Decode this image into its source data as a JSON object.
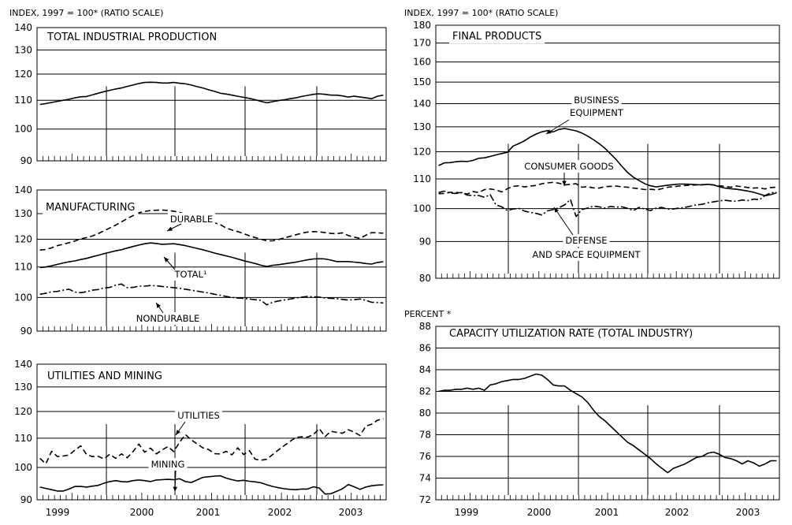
{
  "left_axis_header": "INDEX, 1997 = 100* (RATIO SCALE)",
  "right_axis_header": "INDEX, 1997 = 100* (RATIO SCALE)",
  "years": [
    "1999",
    "2000",
    "2001",
    "2002",
    "2003"
  ],
  "chart_data": [
    {
      "type": "line",
      "title": "TOTAL INDUSTRIAL PRODUCTION",
      "ylim": [
        90,
        140
      ],
      "yticks": [
        90,
        100,
        110,
        120,
        130,
        140
      ],
      "scale": "log",
      "x_start": "1999-01",
      "series": [
        {
          "style": "solid",
          "values": [
            108.5,
            108.8,
            109.2,
            109.6,
            110.0,
            110.4,
            110.9,
            111.3,
            111.4,
            112.0,
            112.6,
            113.2,
            113.7,
            114.2,
            114.6,
            115.2,
            115.7,
            116.3,
            116.7,
            116.8,
            116.7,
            116.5,
            116.5,
            116.7,
            116.4,
            116.2,
            115.7,
            115.1,
            114.6,
            113.9,
            113.3,
            112.6,
            112.3,
            111.9,
            111.5,
            111.1,
            110.7,
            110.2,
            109.6,
            109.1,
            109.5,
            109.9,
            110.2,
            110.6,
            110.9,
            111.4,
            111.8,
            112.2,
            112.4,
            112.2,
            111.9,
            111.9,
            111.6,
            111.2,
            111.5,
            111.2,
            110.9,
            110.6,
            111.5,
            111.9
          ]
        }
      ],
      "annotations": []
    },
    {
      "type": "line",
      "title": "MANUFACTURING",
      "ylim": [
        90,
        140
      ],
      "yticks": [
        90,
        100,
        110,
        120,
        130,
        140
      ],
      "scale": "log",
      "x_start": "1999-01",
      "series": [
        {
          "name": "DURABLE",
          "style": "dashed",
          "values": [
            116.0,
            116.2,
            116.8,
            117.6,
            118.1,
            118.7,
            119.3,
            120.1,
            120.6,
            121.2,
            122.1,
            123.2,
            124.3,
            125.4,
            126.7,
            128.0,
            129.2,
            130.4,
            130.9,
            131.3,
            131.4,
            131.5,
            131.3,
            131.0,
            130.5,
            129.8,
            128.6,
            127.4,
            127.2,
            127.0,
            126.3,
            125.6,
            124.3,
            123.5,
            122.9,
            122.1,
            121.3,
            120.6,
            120.0,
            119.4,
            119.4,
            119.9,
            120.5,
            121.1,
            121.7,
            122.3,
            122.7,
            122.9,
            122.8,
            122.5,
            122.2,
            122.1,
            122.4,
            121.4,
            120.8,
            120.3,
            121.5,
            122.5,
            122.4,
            122.3
          ]
        },
        {
          "name": "TOTAL¹",
          "style": "solid",
          "values": [
            109.8,
            110.0,
            110.4,
            110.9,
            111.4,
            111.8,
            112.1,
            112.6,
            113.0,
            113.6,
            114.1,
            114.7,
            115.2,
            115.7,
            116.1,
            116.7,
            117.3,
            117.8,
            118.3,
            118.6,
            118.4,
            118.1,
            118.2,
            118.3,
            118.0,
            117.6,
            117.1,
            116.6,
            116.1,
            115.5,
            114.9,
            114.4,
            113.9,
            113.4,
            112.8,
            112.2,
            111.7,
            111.2,
            110.6,
            110.2,
            110.6,
            110.8,
            111.1,
            111.4,
            111.7,
            112.1,
            112.5,
            112.8,
            112.9,
            112.8,
            112.4,
            111.9,
            111.9,
            111.9,
            111.7,
            111.5,
            111.2,
            111.0,
            111.6,
            111.8
          ]
        },
        {
          "name": "NONDURABLE",
          "style": "dashdot",
          "values": [
            101.0,
            101.3,
            101.8,
            101.9,
            102.3,
            102.6,
            101.7,
            101.5,
            101.8,
            102.3,
            102.5,
            103.0,
            103.2,
            103.9,
            104.3,
            103.1,
            103.2,
            103.6,
            103.6,
            103.8,
            103.7,
            103.5,
            103.3,
            103.1,
            102.9,
            102.6,
            102.3,
            102.0,
            101.7,
            101.4,
            101.0,
            100.7,
            100.3,
            100.0,
            99.8,
            99.7,
            99.5,
            99.3,
            99.1,
            97.7,
            98.5,
            98.9,
            99.2,
            99.5,
            99.8,
            100.1,
            100.3,
            100.2,
            100.1,
            99.8,
            99.7,
            99.6,
            99.4,
            99.2,
            99.3,
            99.5,
            99.1,
            98.5,
            98.4,
            98.3
          ]
        }
      ],
      "annotations": [
        "DURABLE",
        "TOTAL¹",
        "NONDURABLE"
      ]
    },
    {
      "type": "line",
      "title": "UTILITIES AND MINING",
      "ylim": [
        90,
        140
      ],
      "yticks": [
        90,
        100,
        110,
        120,
        130,
        140
      ],
      "scale": "log",
      "x_start": "1999-01",
      "series": [
        {
          "name": "UTILITIES",
          "style": "dashed",
          "values": [
            103.0,
            101.2,
            105.4,
            103.6,
            103.8,
            104.1,
            105.8,
            107.3,
            104.3,
            103.6,
            103.7,
            102.8,
            104.4,
            103.0,
            104.5,
            103.2,
            105.3,
            107.9,
            105.1,
            106.5,
            104.5,
            105.9,
            107.0,
            105.3,
            108.6,
            111.3,
            109.4,
            108.0,
            106.6,
            106.0,
            104.6,
            104.5,
            105.4,
            104.2,
            106.6,
            104.3,
            105.6,
            102.7,
            102.4,
            102.7,
            104.3,
            105.9,
            107.4,
            108.9,
            110.3,
            110.5,
            110.4,
            111.3,
            113.5,
            110.6,
            112.5,
            112.1,
            111.8,
            113.1,
            112.2,
            111.0,
            114.4,
            115.1,
            116.6,
            117.2
          ]
        },
        {
          "name": "MINING",
          "style": "solid",
          "values": [
            93.8,
            93.4,
            93.0,
            92.6,
            92.6,
            93.2,
            94.0,
            94.0,
            93.8,
            94.1,
            94.3,
            95.0,
            95.5,
            95.8,
            95.5,
            95.4,
            95.8,
            96.0,
            95.8,
            95.5,
            96.0,
            96.1,
            96.2,
            96.1,
            96.4,
            95.5,
            95.2,
            96.0,
            96.8,
            97.0,
            97.2,
            97.3,
            96.6,
            96.1,
            95.7,
            95.9,
            95.6,
            95.4,
            95.1,
            94.5,
            94.0,
            93.6,
            93.3,
            93.1,
            93.0,
            93.2,
            93.2,
            93.9,
            93.5,
            91.7,
            91.8,
            92.5,
            93.3,
            94.6,
            93.9,
            93.1,
            93.8,
            94.2,
            94.4,
            94.5
          ]
        }
      ],
      "annotations": [
        "UTILITIES",
        "MINING"
      ]
    },
    {
      "type": "line",
      "title": "FINAL PRODUCTS",
      "ylim": [
        80,
        180
      ],
      "yticks": [
        80,
        90,
        100,
        110,
        120,
        130,
        140,
        150,
        160,
        170,
        180
      ],
      "scale": "log",
      "x_start": "1999-01",
      "series": [
        {
          "name": "BUSINESS EQUIPMENT",
          "style": "solid",
          "values": [
            114.8,
            115.8,
            115.9,
            116.2,
            116.4,
            116.3,
            116.7,
            117.5,
            117.7,
            118.2,
            118.8,
            119.3,
            119.8,
            122.2,
            123.2,
            124.3,
            125.8,
            127.0,
            127.9,
            128.4,
            127.9,
            128.9,
            129.3,
            128.8,
            128.3,
            127.4,
            126.2,
            124.8,
            123.2,
            121.4,
            119.2,
            117.0,
            114.5,
            112.3,
            110.6,
            109.4,
            108.3,
            107.6,
            107.2,
            107.5,
            107.8,
            108.0,
            108.2,
            108.2,
            108.1,
            108.0,
            107.9,
            108.1,
            107.9,
            107.3,
            106.8,
            106.6,
            106.4,
            106.1,
            105.8,
            105.4,
            104.8,
            104.2,
            104.6,
            105.2
          ]
        },
        {
          "name": "CONSUMER GOODS",
          "style": "dashed",
          "values": [
            104.9,
            105.0,
            105.4,
            105.3,
            105.2,
            104.8,
            105.6,
            105.3,
            106.3,
            106.5,
            106.2,
            105.5,
            106.6,
            107.4,
            107.6,
            107.2,
            107.5,
            107.7,
            108.3,
            108.6,
            108.8,
            108.5,
            107.9,
            108.1,
            108.3,
            107.1,
            107.3,
            106.9,
            106.8,
            107.3,
            107.4,
            107.5,
            107.2,
            107.1,
            106.8,
            106.6,
            106.3,
            106.4,
            106.2,
            106.6,
            107.1,
            107.3,
            107.5,
            107.7,
            107.8,
            107.9,
            108.0,
            108.0,
            107.9,
            107.6,
            107.4,
            107.1,
            107.5,
            107.3,
            107.0,
            106.8,
            106.9,
            106.5,
            107.0,
            107.1
          ]
        },
        {
          "name": "DEFENSE AND SPACE EQUIPMENT",
          "style": "dashdot",
          "values": [
            105.3,
            105.8,
            105.1,
            105.0,
            105.3,
            104.4,
            104.3,
            104.3,
            103.7,
            104.6,
            101.2,
            100.6,
            99.4,
            99.9,
            100.1,
            99.2,
            98.8,
            98.5,
            98.0,
            99.3,
            99.7,
            100.3,
            101.2,
            103.0,
            97.5,
            99.7,
            100.2,
            100.8,
            100.6,
            100.2,
            100.7,
            100.5,
            100.6,
            100.1,
            99.4,
            100.4,
            99.9,
            99.4,
            100.2,
            100.4,
            99.8,
            99.9,
            100.2,
            100.4,
            100.8,
            101.2,
            101.4,
            101.9,
            102.2,
            102.5,
            102.7,
            102.5,
            102.4,
            102.8,
            102.6,
            103.1,
            102.9,
            104.3,
            105.2,
            105.4
          ]
        }
      ],
      "annotations": [
        "BUSINESS",
        "EQUIPMENT",
        "CONSUMER GOODS",
        "DEFENSE",
        "AND SPACE EQUIPMENT"
      ]
    },
    {
      "type": "line",
      "title": "CAPACITY UTILIZATION RATE (TOTAL INDUSTRY)",
      "axis_header": "PERCENT *",
      "ylim": [
        72,
        88
      ],
      "yticks": [
        72,
        74,
        76,
        78,
        80,
        82,
        84,
        86,
        88
      ],
      "scale": "linear",
      "x_start": "1999-01",
      "series": [
        {
          "style": "solid",
          "values": [
            82.0,
            82.1,
            82.1,
            82.2,
            82.2,
            82.3,
            82.2,
            82.3,
            82.1,
            82.6,
            82.7,
            82.9,
            83.0,
            83.1,
            83.1,
            83.2,
            83.4,
            83.6,
            83.5,
            83.1,
            82.6,
            82.5,
            82.5,
            82.1,
            81.8,
            81.5,
            81.0,
            80.3,
            79.7,
            79.3,
            78.8,
            78.3,
            77.8,
            77.3,
            77.0,
            76.6,
            76.2,
            75.8,
            75.3,
            74.9,
            74.5,
            74.9,
            75.1,
            75.3,
            75.6,
            75.9,
            76.0,
            76.3,
            76.4,
            76.2,
            75.9,
            75.8,
            75.6,
            75.3,
            75.6,
            75.4,
            75.1,
            75.3,
            75.6,
            75.6
          ]
        }
      ],
      "annotations": []
    }
  ]
}
